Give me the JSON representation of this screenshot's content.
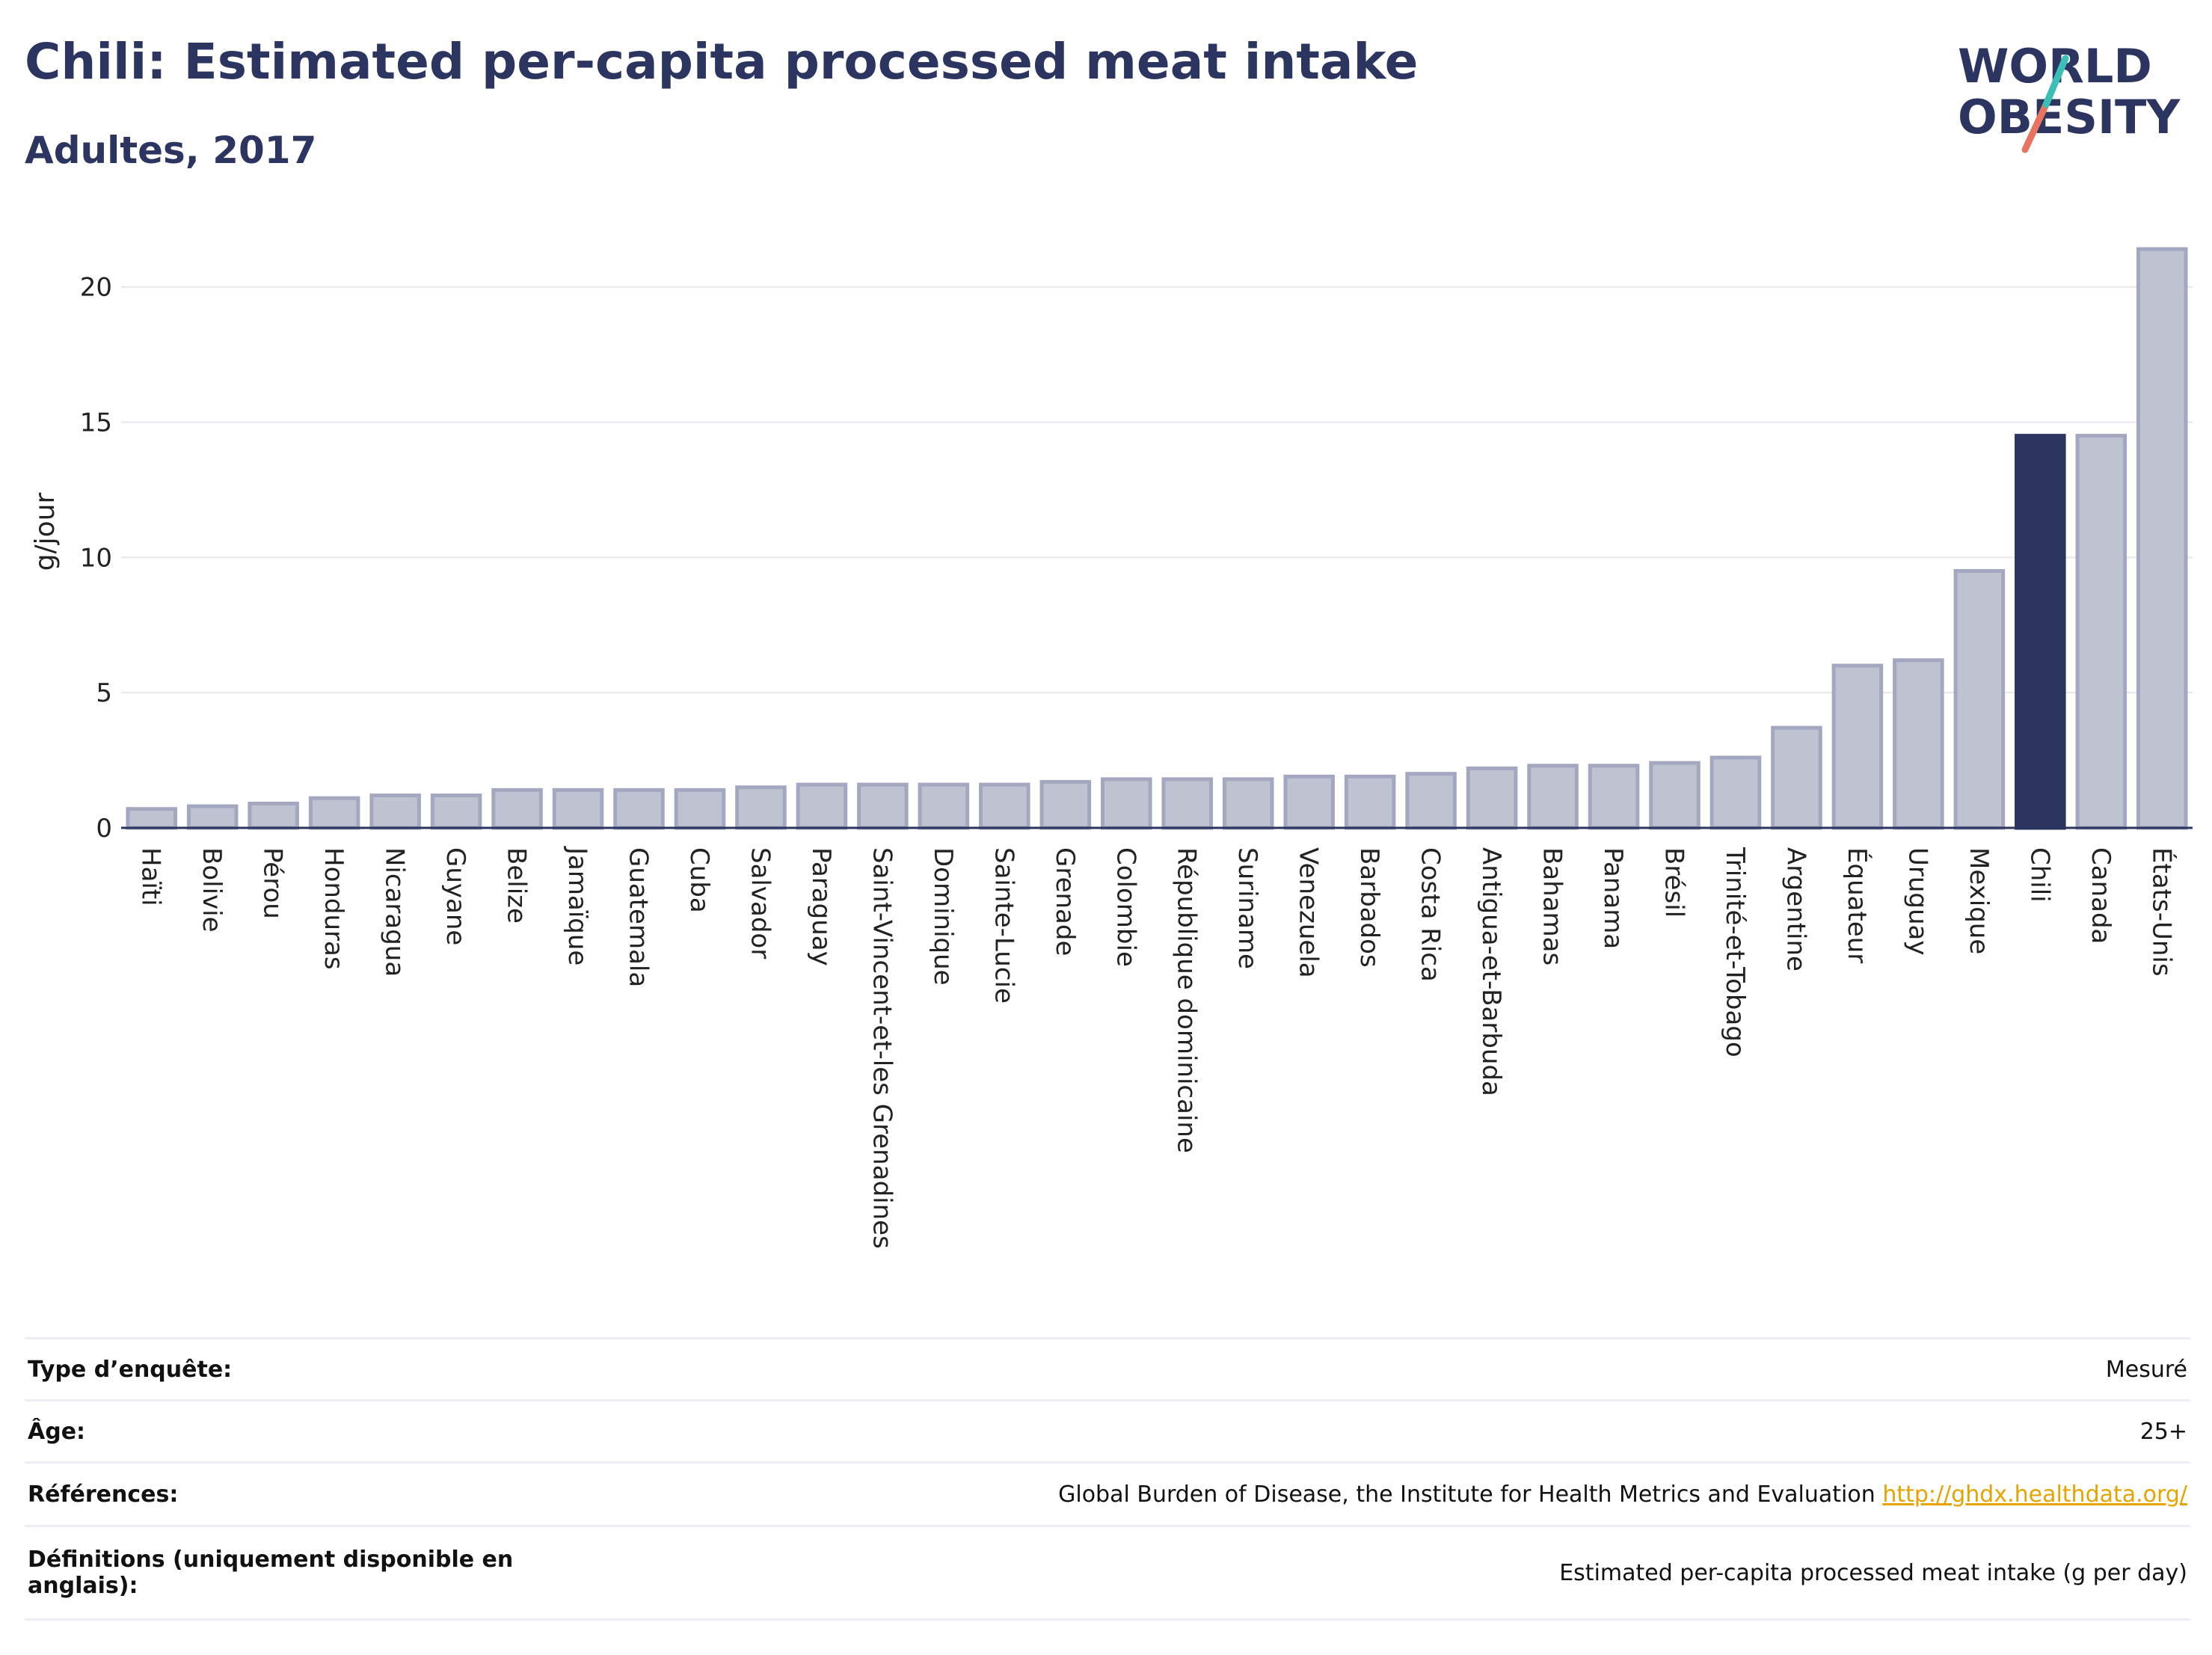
{
  "header": {
    "title": "Chili: Estimated per-capita processed meat intake",
    "subtitle": "Adultes, 2017"
  },
  "logo": {
    "line1": "WORLD",
    "line2": "OBESITY",
    "colors": {
      "text": "#2b3560",
      "slash_top": "#3bbfb4",
      "slash_bottom": "#e8735f"
    }
  },
  "colors": {
    "bar_fill": "#bfc2d0",
    "bar_stroke": "#a3a8c0",
    "highlight": "#2b3560",
    "grid": "#e6e7ec",
    "axis": "#2b3560"
  },
  "chart_data": {
    "type": "bar",
    "ylabel": "g/jour",
    "ylim": [
      0,
      21.9
    ],
    "yticks": [
      0,
      5,
      10,
      15,
      20
    ],
    "grid": true,
    "highlight": "Chili",
    "categories": [
      "Haïti",
      "Bolivie",
      "Pérou",
      "Honduras",
      "Nicaragua",
      "Guyane",
      "Belize",
      "Jamaïque",
      "Guatemala",
      "Cuba",
      "Salvador",
      "Paraguay",
      "Saint-Vincent-et-les Grenadines",
      "Dominique",
      "Sainte-Lucie",
      "Grenade",
      "Colombie",
      "République dominicaine",
      "Suriname",
      "Venezuela",
      "Barbados",
      "Costa Rica",
      "Antigua-et-Barbuda",
      "Bahamas",
      "Panama",
      "Brésil",
      "Trinité-et-Tobago",
      "Argentine",
      "Équateur",
      "Uruguay",
      "Mexique",
      "Chili",
      "Canada",
      "États-Unis"
    ],
    "values": [
      0.7,
      0.8,
      0.9,
      1.1,
      1.2,
      1.2,
      1.4,
      1.4,
      1.4,
      1.4,
      1.5,
      1.6,
      1.6,
      1.6,
      1.6,
      1.7,
      1.8,
      1.8,
      1.8,
      1.9,
      1.9,
      2.0,
      2.2,
      2.3,
      2.3,
      2.4,
      2.6,
      3.7,
      6.0,
      6.2,
      9.5,
      14.5,
      14.5,
      21.4
    ]
  },
  "meta": {
    "rows": [
      {
        "key": "Type d’enquête:",
        "value": "Mesuré"
      },
      {
        "key": "Âge:",
        "value": "25+"
      },
      {
        "key": "Références:",
        "value": "Global Burden of Disease, the Institute for Health Metrics and Evaluation",
        "link": "http://ghdx.healthdata.org/"
      },
      {
        "key": "Définitions (uniquement disponible en anglais):",
        "value": "Estimated per-capita processed meat intake (g per day)"
      }
    ]
  }
}
